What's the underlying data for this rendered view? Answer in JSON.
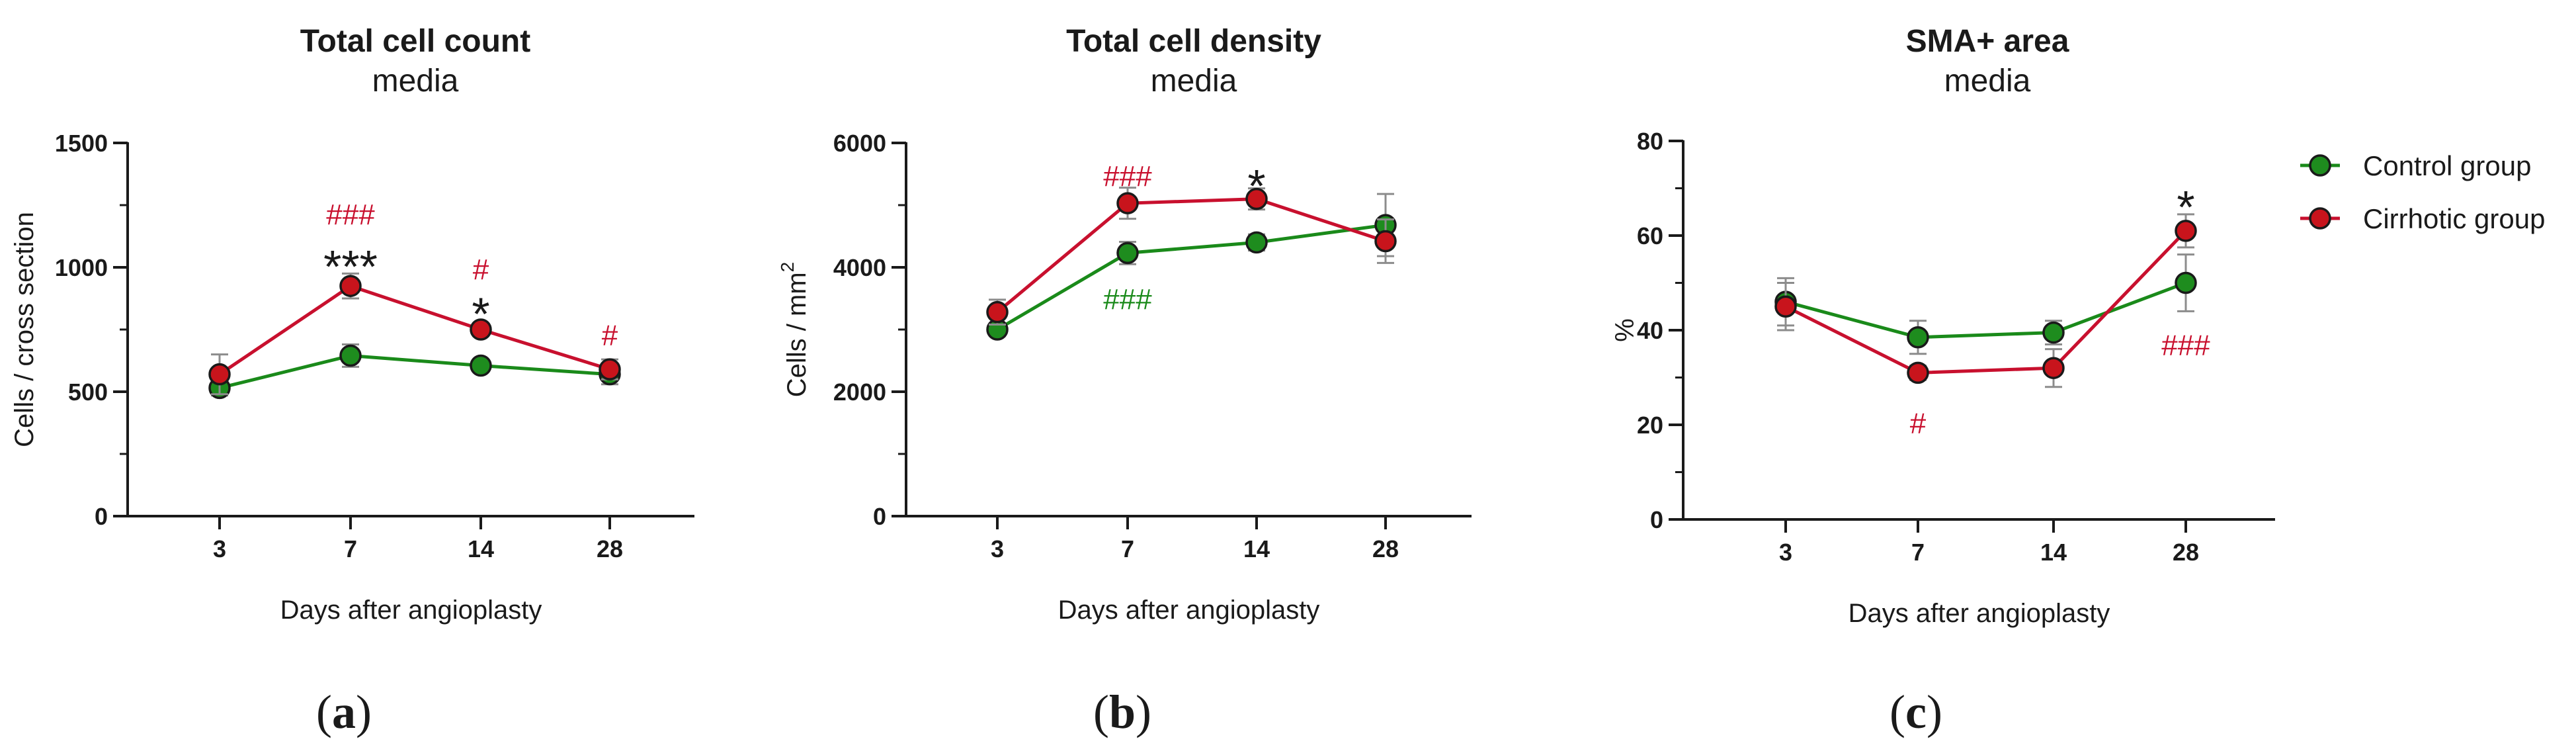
{
  "figure": {
    "legend": [
      {
        "name": "Control group",
        "color": "#1a8a1a"
      },
      {
        "name": "Cirrhotic group",
        "color": "#c8102e"
      }
    ],
    "colors": {
      "control": "#1a8a1a",
      "cirrhotic": "#c8102e",
      "marker_control": "#1e8c1e",
      "marker_cirrhotic": "#c8141c",
      "errorbar": "#8c8c8c",
      "axis": "#1a1a1a"
    }
  },
  "chart_data": [
    {
      "id": "a",
      "type": "line",
      "title": "Total cell count",
      "subtitle": "media",
      "panel_label": "a",
      "xlabel": "Days after angioplasty",
      "ylabel": "Cells / cross section",
      "categories": [
        "3",
        "7",
        "14",
        "28"
      ],
      "ylim": [
        0,
        1500
      ],
      "yticks": [
        0,
        500,
        1000,
        1500
      ],
      "ytick_labels": [
        "0",
        "500",
        "1000",
        "1500"
      ],
      "series": [
        {
          "name": "Control group",
          "values": [
            515,
            645,
            605,
            570
          ],
          "errors": [
            30,
            45,
            20,
            40
          ]
        },
        {
          "name": "Cirrhotic group",
          "values": [
            570,
            925,
            750,
            590
          ],
          "errors": [
            80,
            50,
            25,
            40
          ]
        }
      ],
      "annotations": [
        {
          "text": "###",
          "x": "7",
          "value": 1215,
          "color": "red"
        },
        {
          "text": "***",
          "x": "7",
          "value": 1040,
          "color": "black"
        },
        {
          "text": "#",
          "x": "14",
          "value": 995,
          "color": "red"
        },
        {
          "text": "*",
          "x": "14",
          "value": 850,
          "color": "black"
        },
        {
          "text": "#",
          "x": "28",
          "value": 730,
          "color": "red"
        }
      ]
    },
    {
      "id": "b",
      "type": "line",
      "title": "Total cell density",
      "subtitle": "media",
      "panel_label": "b",
      "xlabel": "Days after angioplasty",
      "ylabel": "Cells / mm",
      "ylabel_sup": "2",
      "categories": [
        "3",
        "7",
        "14",
        "28"
      ],
      "ylim": [
        0,
        6000
      ],
      "yticks": [
        0,
        2000,
        4000,
        6000
      ],
      "ytick_labels": [
        "0",
        "2000",
        "4000",
        "6000"
      ],
      "series": [
        {
          "name": "Control group",
          "values": [
            3000,
            4230,
            4400,
            4680
          ],
          "errors": [
            80,
            180,
            130,
            500
          ]
        },
        {
          "name": "Cirrhotic group",
          "values": [
            3280,
            5030,
            5100,
            4420
          ],
          "errors": [
            200,
            250,
            170,
            350
          ]
        }
      ],
      "annotations": [
        {
          "text": "###",
          "x": "7",
          "value": 5480,
          "color": "red"
        },
        {
          "text": "###",
          "x": "7",
          "value": 3500,
          "color": "green"
        },
        {
          "text": "*",
          "x": "14",
          "value": 5460,
          "color": "black"
        }
      ]
    },
    {
      "id": "c",
      "type": "line",
      "title": "SMA+ area",
      "subtitle": "media",
      "panel_label": "c",
      "xlabel": "Days after angioplasty",
      "ylabel": "%",
      "categories": [
        "3",
        "7",
        "14",
        "28"
      ],
      "ylim": [
        0,
        80
      ],
      "yticks": [
        0,
        20,
        40,
        60,
        80
      ],
      "ytick_labels": [
        "0",
        "20",
        "40",
        "60",
        "80"
      ],
      "series": [
        {
          "name": "Control group",
          "values": [
            46,
            38.5,
            39.5,
            50
          ],
          "errors": [
            5,
            3.5,
            2.5,
            6
          ]
        },
        {
          "name": "Cirrhotic group",
          "values": [
            45,
            31,
            32,
            61
          ],
          "errors": [
            5,
            1.5,
            4,
            3.5
          ]
        }
      ],
      "annotations": [
        {
          "text": "*",
          "x": "28",
          "value": 68,
          "color": "black"
        },
        {
          "text": "#",
          "x": "7",
          "value": 20.5,
          "color": "red"
        },
        {
          "text": "###",
          "x": "28",
          "value": 37,
          "color": "red"
        }
      ]
    }
  ]
}
